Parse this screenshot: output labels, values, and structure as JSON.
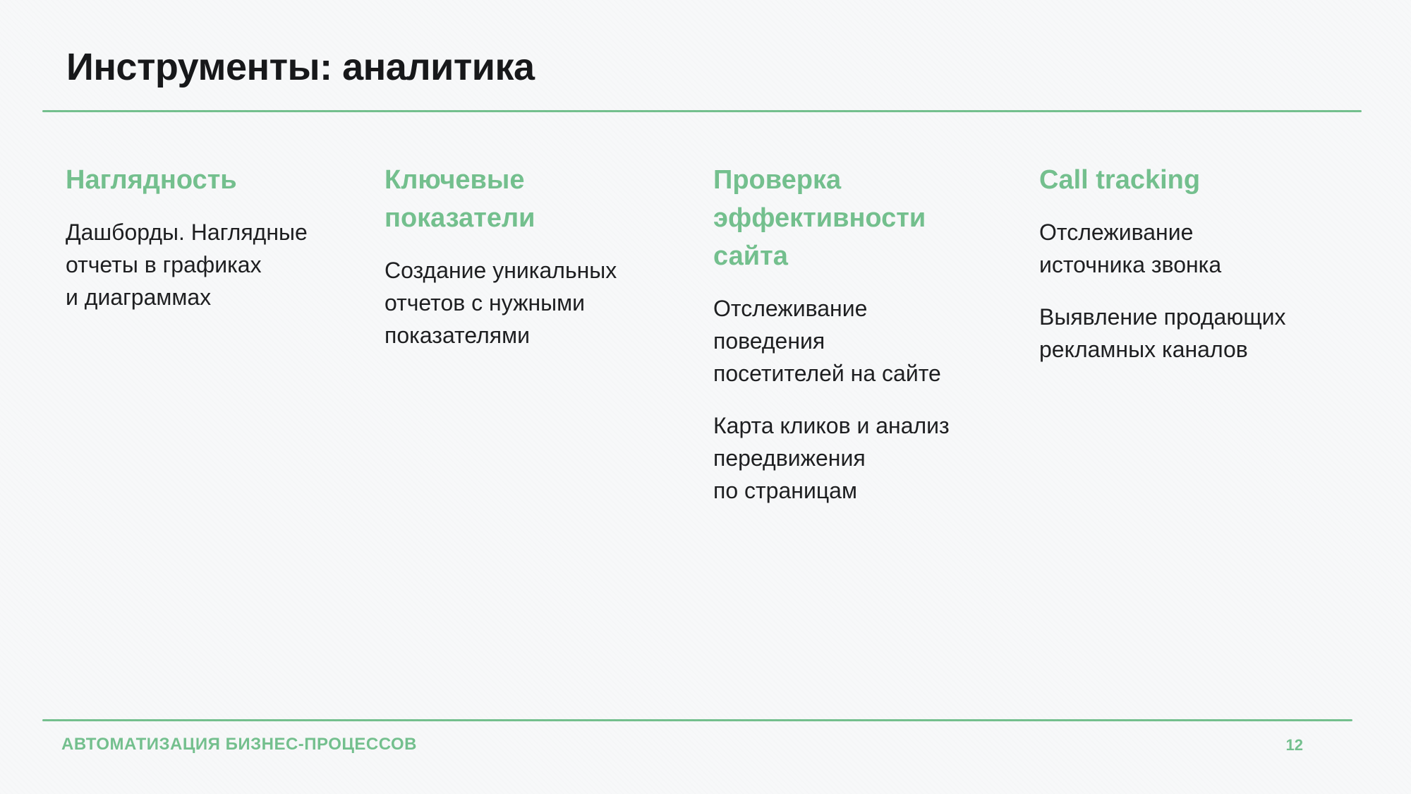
{
  "slide": {
    "title": "Инструменты: аналитика",
    "footer": {
      "label": "АВТОМАТИЗАЦИЯ БИЗНЕС-ПРОЦЕССОВ",
      "page_number": "12"
    },
    "colors": {
      "accent_green": "#74c08e",
      "background": "#f7f8f9",
      "text": "#1e1f21"
    }
  },
  "columns": [
    {
      "heading": [
        "Наглядность"
      ],
      "paragraphs": [
        [
          "Дашборды. Наглядные",
          "отчеты в графиках",
          "и диаграммах"
        ]
      ]
    },
    {
      "heading": [
        "Ключевые",
        "показатели"
      ],
      "paragraphs": [
        [
          "Создание уникальных",
          "отчетов с нужными",
          "показателями"
        ]
      ]
    },
    {
      "heading": [
        "Проверка",
        "эффективности",
        "сайта"
      ],
      "paragraphs": [
        [
          "Отслеживание",
          "поведения",
          "посетителей на сайте"
        ],
        [
          "Карта кликов и анализ",
          "передвижения",
          "по страницам"
        ]
      ]
    },
    {
      "heading": [
        "Call tracking"
      ],
      "paragraphs": [
        [
          "Отслеживание",
          "источника звонка"
        ],
        [
          "Выявление продающих",
          "рекламных каналов"
        ]
      ]
    }
  ]
}
